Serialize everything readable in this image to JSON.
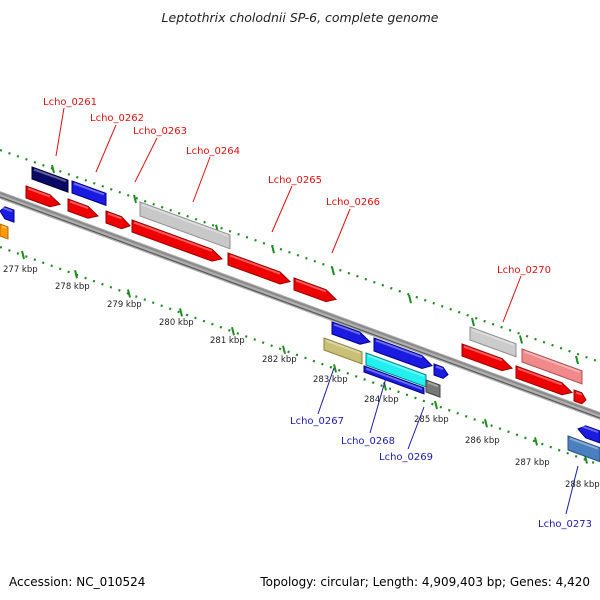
{
  "title": "Leptothrix cholodnii SP-6, complete genome",
  "footer": {
    "accession": "Accession: NC_010524",
    "summary": "Topology: circular; Length: 4,909,403 bp; Genes: 4,420"
  },
  "colors": {
    "forward_gene": "#ff0000",
    "reverse_gene": "#0000ff",
    "top_label": "#e01010",
    "bottom_label": "#1a1ab0",
    "tick": "#1e8c1e",
    "backbone": "#8a8a8a"
  },
  "ticks": [
    {
      "label": "277 kbp"
    },
    {
      "label": "278 kbp"
    },
    {
      "label": "279 kbp"
    },
    {
      "label": "280 kbp"
    },
    {
      "label": "281 kbp"
    },
    {
      "label": "282 kbp"
    },
    {
      "label": "283 kbp"
    },
    {
      "label": "284 kbp"
    },
    {
      "label": "285 kbp"
    },
    {
      "label": "286 kbp"
    },
    {
      "label": "287 kbp"
    },
    {
      "label": "288 kbp"
    }
  ],
  "top_labels": [
    {
      "text": "Lcho_0261"
    },
    {
      "text": "Lcho_0262"
    },
    {
      "text": "Lcho_0263"
    },
    {
      "text": "Lcho_0264"
    },
    {
      "text": "Lcho_0265"
    },
    {
      "text": "Lcho_0266"
    },
    {
      "text": "Lcho_0270"
    }
  ],
  "bottom_labels": [
    {
      "text": "Lcho_0267"
    },
    {
      "text": "Lcho_0268"
    },
    {
      "text": "Lcho_0269"
    },
    {
      "text": "Lcho_0273"
    }
  ]
}
